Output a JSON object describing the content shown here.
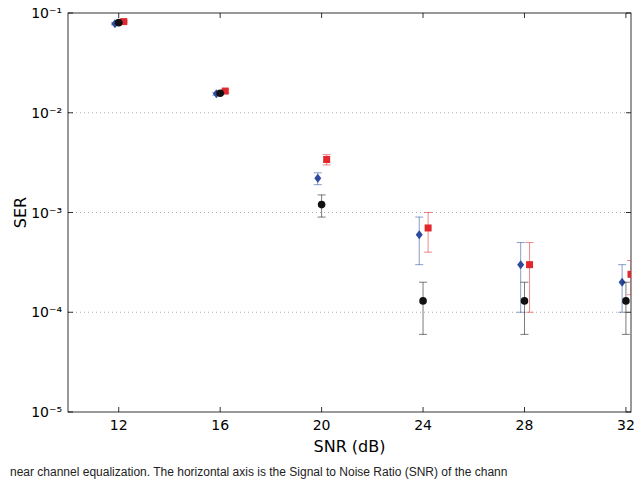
{
  "chart_data": {
    "type": "scatter",
    "x_label": "SNR (dB)",
    "y_label": "SER",
    "annotations": [
      "near channel equalization.  The horizontal axis is the Signal to Noise Ratio (SNR) of the chann"
    ],
    "log": "y",
    "grid": true,
    "xlim": [
      10,
      32.2
    ],
    "xticks": [
      12,
      16,
      20,
      24,
      28,
      32
    ],
    "ylim": [
      1e-05,
      0.1
    ],
    "yticks": [
      {
        "value": 1e-05,
        "label": "10⁻⁵"
      },
      {
        "value": 0.0001,
        "label": "10⁻⁴"
      },
      {
        "value": 0.001,
        "label": "10⁻³"
      },
      {
        "value": 0.01,
        "label": "10⁻²"
      },
      {
        "value": 0.1,
        "label": "10⁻¹"
      }
    ],
    "series": [
      {
        "color": "#2e4a9e",
        "marker": "diamond",
        "x": [
          11.85,
          15.85,
          19.85,
          23.85,
          27.85,
          31.85
        ],
        "values": [
          0.078,
          0.0155,
          0.0022,
          0.0006,
          0.0003,
          0.0002
        ],
        "errors": [
          0.002,
          0.0005,
          0.0003,
          0.0003,
          0.0002,
          0.0001
        ]
      },
      {
        "color": "#e0282e",
        "marker": "square",
        "x": [
          12.2,
          16.2,
          20.2,
          24.2,
          28.2,
          32.2
        ],
        "values": [
          0.082,
          0.0165,
          0.0034,
          0.0007,
          0.0003,
          0.00024
        ],
        "errors": [
          0.002,
          0.0006,
          0.0004,
          0.0003,
          0.0002,
          9e-05
        ]
      },
      {
        "color": "#111111",
        "marker": "circle",
        "x": [
          12,
          16,
          20,
          24,
          28,
          32
        ],
        "values": [
          0.08,
          0.0157,
          0.0012,
          0.00013,
          0.00013,
          0.00013
        ],
        "errors": [
          0.001,
          0.0004,
          0.0003,
          7e-05,
          7e-05,
          7e-05
        ]
      }
    ]
  }
}
